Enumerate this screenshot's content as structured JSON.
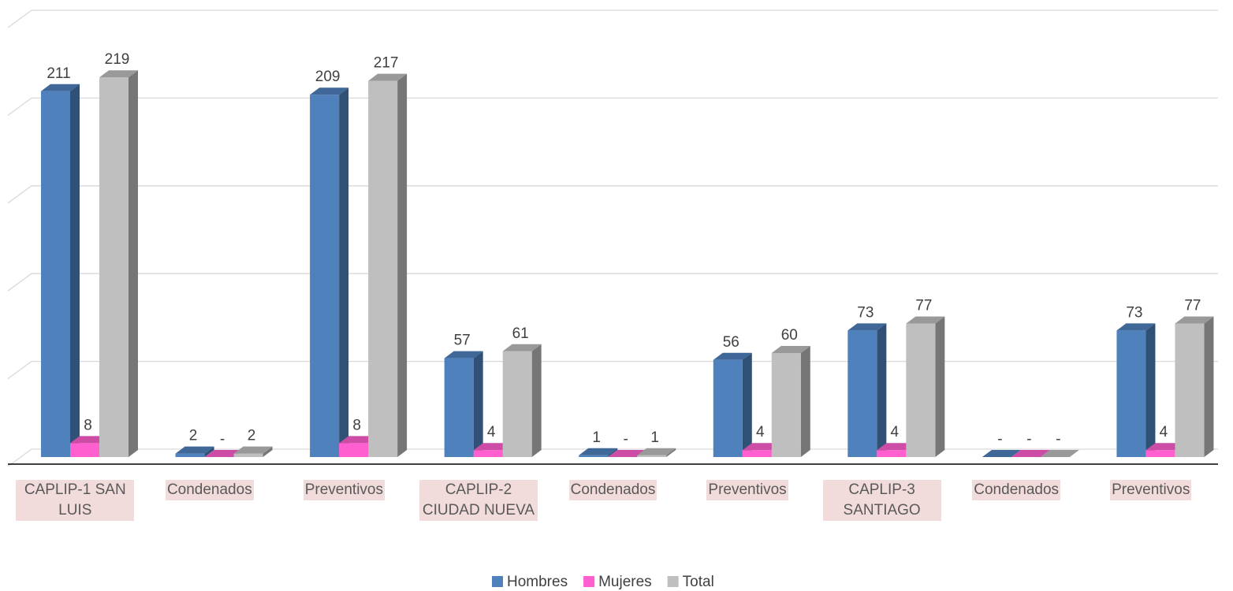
{
  "chart_data": {
    "type": "bar3d",
    "categories": [
      "CAPLIP-1 SAN LUIS",
      "Condenados",
      "Preventivos",
      "CAPLIP-2 CIUDAD NUEVA",
      "Condenados",
      "Preventivos",
      "CAPLIP-3 SANTIAGO",
      "Condenados",
      "Preventivos"
    ],
    "series": [
      {
        "name": "Hombres",
        "color": "#4f81bd",
        "values": [
          211,
          2,
          209,
          57,
          1,
          56,
          73,
          0,
          73
        ],
        "value_labels": [
          "211",
          "2",
          "209",
          "57",
          "1",
          "56",
          "73",
          "-",
          "73"
        ]
      },
      {
        "name": "Mujeres",
        "color": "#ff5fcf",
        "values": [
          8,
          0,
          8,
          4,
          0,
          4,
          4,
          0,
          4
        ],
        "value_labels": [
          "8",
          "-",
          "8",
          "4",
          "-",
          "4",
          "4",
          "-",
          "4"
        ]
      },
      {
        "name": "Total",
        "color": "#bfbfbf",
        "values": [
          219,
          2,
          217,
          61,
          1,
          60,
          77,
          0,
          77
        ],
        "value_labels": [
          "219",
          "2",
          "217",
          "61",
          "1",
          "60",
          "77",
          "-",
          "77"
        ]
      }
    ],
    "ylim": [
      0,
      250
    ],
    "yticks": [
      0,
      50,
      100,
      150,
      200,
      250
    ],
    "grid": true,
    "legend": "bottom"
  }
}
